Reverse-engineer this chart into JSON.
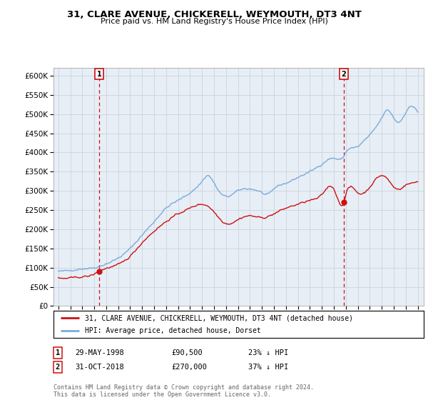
{
  "title_line1": "31, CLARE AVENUE, CHICKERELL, WEYMOUTH, DT3 4NT",
  "title_line2": "Price paid vs. HM Land Registry's House Price Index (HPI)",
  "ytick_values": [
    0,
    50000,
    100000,
    150000,
    200000,
    250000,
    300000,
    350000,
    400000,
    450000,
    500000,
    550000,
    600000
  ],
  "ylim": [
    0,
    620000
  ],
  "xlim_start": 1994.6,
  "xlim_end": 2025.5,
  "hpi_color": "#7aaadd",
  "price_color": "#cc1111",
  "chart_bg": "#e8eef5",
  "marker1_date": 1998.41,
  "marker1_price": 90500,
  "marker1_label": "1",
  "marker2_date": 2018.83,
  "marker2_price": 270000,
  "marker2_label": "2",
  "legend_line1": "31, CLARE AVENUE, CHICKERELL, WEYMOUTH, DT3 4NT (detached house)",
  "legend_line2": "HPI: Average price, detached house, Dorset",
  "info1_num": "1",
  "info1_date": "29-MAY-1998",
  "info1_price": "£90,500",
  "info1_hpi": "23% ↓ HPI",
  "info2_num": "2",
  "info2_date": "31-OCT-2018",
  "info2_price": "£270,000",
  "info2_hpi": "37% ↓ HPI",
  "footnote": "Contains HM Land Registry data © Crown copyright and database right 2024.\nThis data is licensed under the Open Government Licence v3.0.",
  "background_color": "#ffffff",
  "grid_color": "#c8d4e0"
}
